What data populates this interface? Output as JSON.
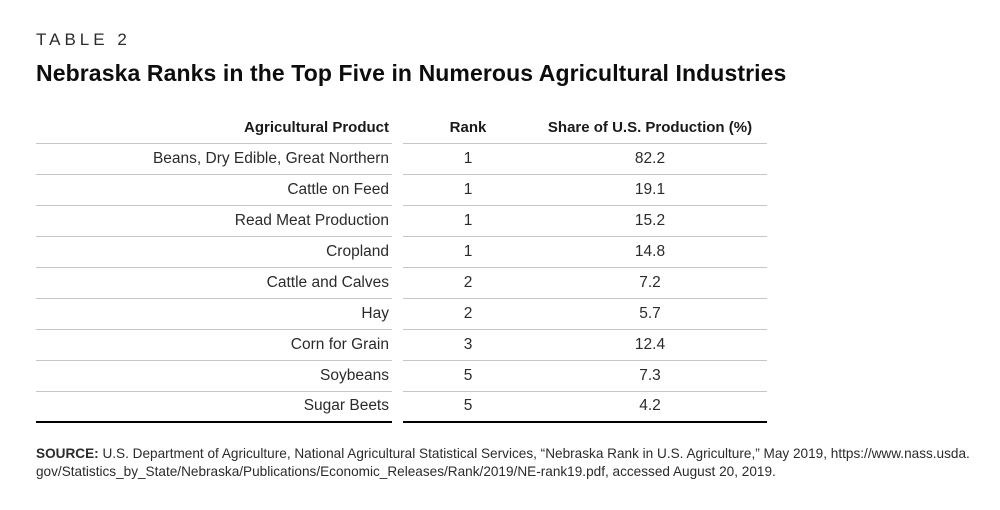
{
  "page": {
    "kicker": "TABLE 2",
    "title": "Nebraska Ranks in the Top Five in Numerous Agricultural Industries"
  },
  "table": {
    "columns": [
      "Agricultural Product",
      "Rank",
      "Share of U.S. Production (%)"
    ],
    "rows": [
      {
        "product": "Beans, Dry Edible, Great Northern",
        "rank": "1",
        "share": "82.2"
      },
      {
        "product": "Cattle on Feed",
        "rank": "1",
        "share": "19.1"
      },
      {
        "product": "Read Meat Production",
        "rank": "1",
        "share": "15.2"
      },
      {
        "product": "Cropland",
        "rank": "1",
        "share": "14.8"
      },
      {
        "product": "Cattle and Calves",
        "rank": "2",
        "share": "7.2"
      },
      {
        "product": "Hay",
        "rank": "2",
        "share": "5.7"
      },
      {
        "product": "Corn for Grain",
        "rank": "3",
        "share": "12.4"
      },
      {
        "product": "Soybeans",
        "rank": "5",
        "share": "7.3"
      },
      {
        "product": "Sugar Beets",
        "rank": "5",
        "share": "4.2"
      }
    ]
  },
  "source": {
    "label": "SOURCE:",
    "text": " U.S. Department of Agriculture, National Agricultural Statistical Services, “Nebraska Rank in U.S. Agriculture,” May 2019, https://www.nass.usda.gov/Statistics_by_State/Nebraska/Publications/Economic_Releases/Rank/2019/NE-rank19.pdf, accessed August 20, 2019."
  },
  "colors": {
    "row_rule": "#c6c6c6",
    "table_bottom_rule": "#000000",
    "text": "#231f20",
    "background": "#ffffff"
  }
}
